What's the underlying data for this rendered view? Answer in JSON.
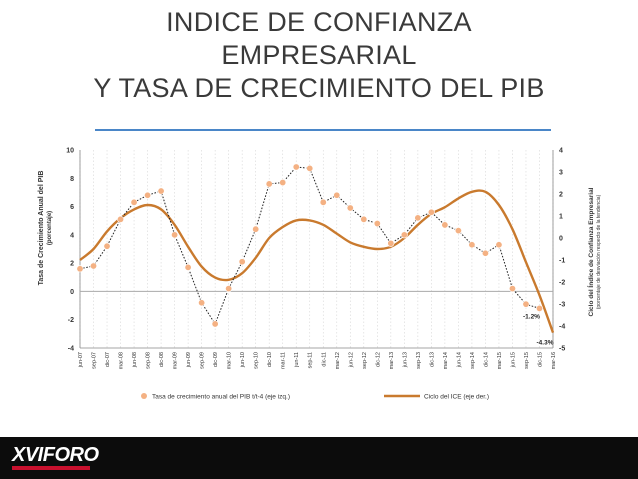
{
  "slide": {
    "title_lines": [
      "INDICE DE CONFIANZA",
      "EMPRESARIAL",
      "Y TASA DE CRECIMIENTO DEL PIB"
    ]
  },
  "footer": {
    "logo_text": "XVIFORO"
  },
  "colors": {
    "accent_rule": "#4a86c8",
    "gdp_dot": "#f4b183",
    "ice_line": "#c97a2e",
    "footer_bg": "#0c0c0c"
  },
  "chart_data": {
    "type": "line",
    "categories": [
      "jun-07",
      "sep-07",
      "dic-07",
      "mar-08",
      "jun-08",
      "sep-08",
      "dic-08",
      "mar-09",
      "jun-09",
      "sep-09",
      "dic-09",
      "mar-10",
      "jun-10",
      "sep-10",
      "dic-10",
      "mar-11",
      "jun-11",
      "sep-11",
      "dic-11",
      "mar-12",
      "jun-12",
      "sep-12",
      "dic-12",
      "mar-13",
      "jun-13",
      "sep-13",
      "dic-13",
      "mar-14",
      "jun-14",
      "sep-14",
      "dic-14",
      "mar-15",
      "jun-15",
      "sep-15",
      "dic-15",
      "mar-16"
    ],
    "series": [
      {
        "name": "Tasa de crecimiento anual del PIB  t/t-4 (eje izq.)",
        "axis": "left",
        "style": "dotted-with-markers",
        "values": [
          1.6,
          1.8,
          3.2,
          5.1,
          6.3,
          6.8,
          7.1,
          4.0,
          1.7,
          -0.8,
          -2.3,
          0.2,
          2.1,
          4.4,
          7.6,
          7.7,
          8.8,
          8.7,
          6.3,
          6.8,
          5.9,
          5.1,
          4.8,
          3.4,
          4.0,
          5.2,
          5.6,
          4.7,
          4.3,
          3.3,
          2.7,
          3.3,
          0.2,
          -0.9,
          -1.2,
          null
        ]
      },
      {
        "name": "Ciclo del ICE (eje der.)",
        "axis": "right",
        "style": "solid",
        "values": [
          -1.0,
          -0.5,
          0.3,
          0.9,
          1.3,
          1.5,
          1.3,
          0.6,
          -0.4,
          -1.3,
          -1.8,
          -1.9,
          -1.6,
          -0.9,
          0.0,
          0.5,
          0.8,
          0.8,
          0.6,
          0.2,
          -0.2,
          -0.4,
          -0.5,
          -0.4,
          0.0,
          0.6,
          1.1,
          1.4,
          1.8,
          2.1,
          2.1,
          1.5,
          0.4,
          -1.1,
          -2.6,
          -4.3
        ]
      }
    ],
    "annotations": [
      {
        "text": "-1.2%",
        "series": 0,
        "index": 34
      },
      {
        "text": "-4.3%",
        "series": 1,
        "index": 35
      }
    ],
    "y_left": {
      "label": "Tasa de Crecimiento Anual del PIB",
      "sublabel": "(porcentaje)",
      "lim": [
        -4,
        10
      ],
      "ticks": [
        -4,
        -2,
        0,
        2,
        4,
        6,
        8,
        10
      ]
    },
    "y_right": {
      "label": "Ciclo del Índice de Confianza Empresarial",
      "sublabel": "(porcentaje de desviación respecto de la tendencia)",
      "lim": [
        -5,
        4
      ],
      "ticks": [
        -5,
        -4,
        -3,
        -2,
        -1,
        0,
        1,
        2,
        3,
        4
      ]
    },
    "grid": "vertical-dotted",
    "legend": "bottom"
  }
}
